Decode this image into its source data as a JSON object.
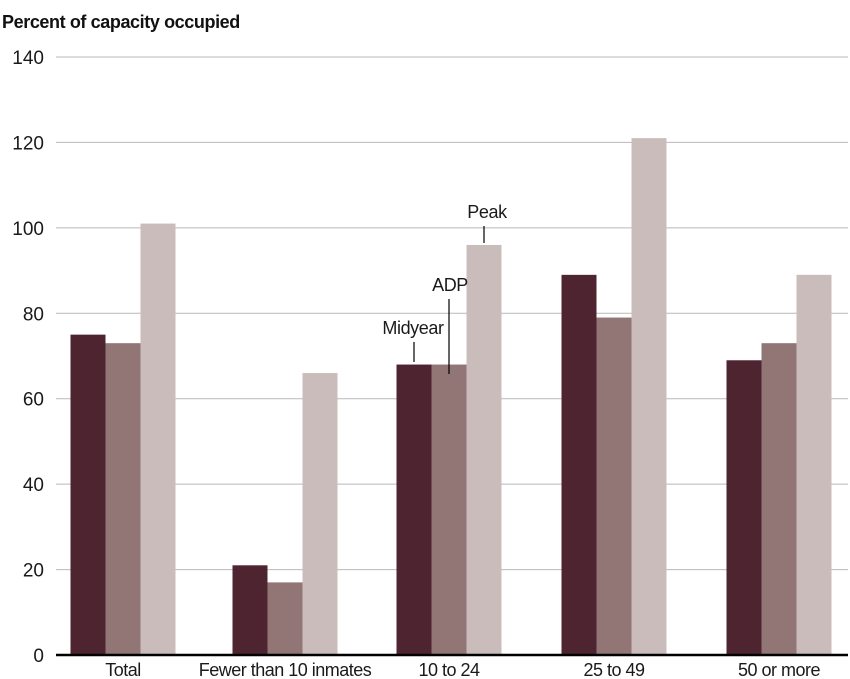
{
  "chart_data": {
    "type": "bar",
    "title": "",
    "ylabel": "Percent of capacity occupied",
    "xlabel": "",
    "ylim": [
      0,
      140
    ],
    "yticks": [
      0,
      20,
      40,
      60,
      80,
      100,
      120,
      140
    ],
    "grid": true,
    "categories": [
      "Total",
      "Fewer than 10 inmates",
      "10 to 24",
      "25 to 49",
      "50 or more"
    ],
    "series": [
      {
        "name": "Midyear",
        "color": "#4f2431",
        "values": [
          75,
          21,
          68,
          89,
          69
        ]
      },
      {
        "name": "ADP",
        "color": "#917675",
        "values": [
          73,
          17,
          68,
          79,
          73
        ]
      },
      {
        "name": "Peak",
        "color": "#c9bcbb",
        "values": [
          101,
          66,
          96,
          121,
          89
        ]
      }
    ],
    "annotations": [
      {
        "text": "Midyear",
        "series": 0,
        "category": 2
      },
      {
        "text": "ADP",
        "series": 1,
        "category": 2
      },
      {
        "text": "Peak",
        "series": 2,
        "category": 2
      }
    ]
  }
}
